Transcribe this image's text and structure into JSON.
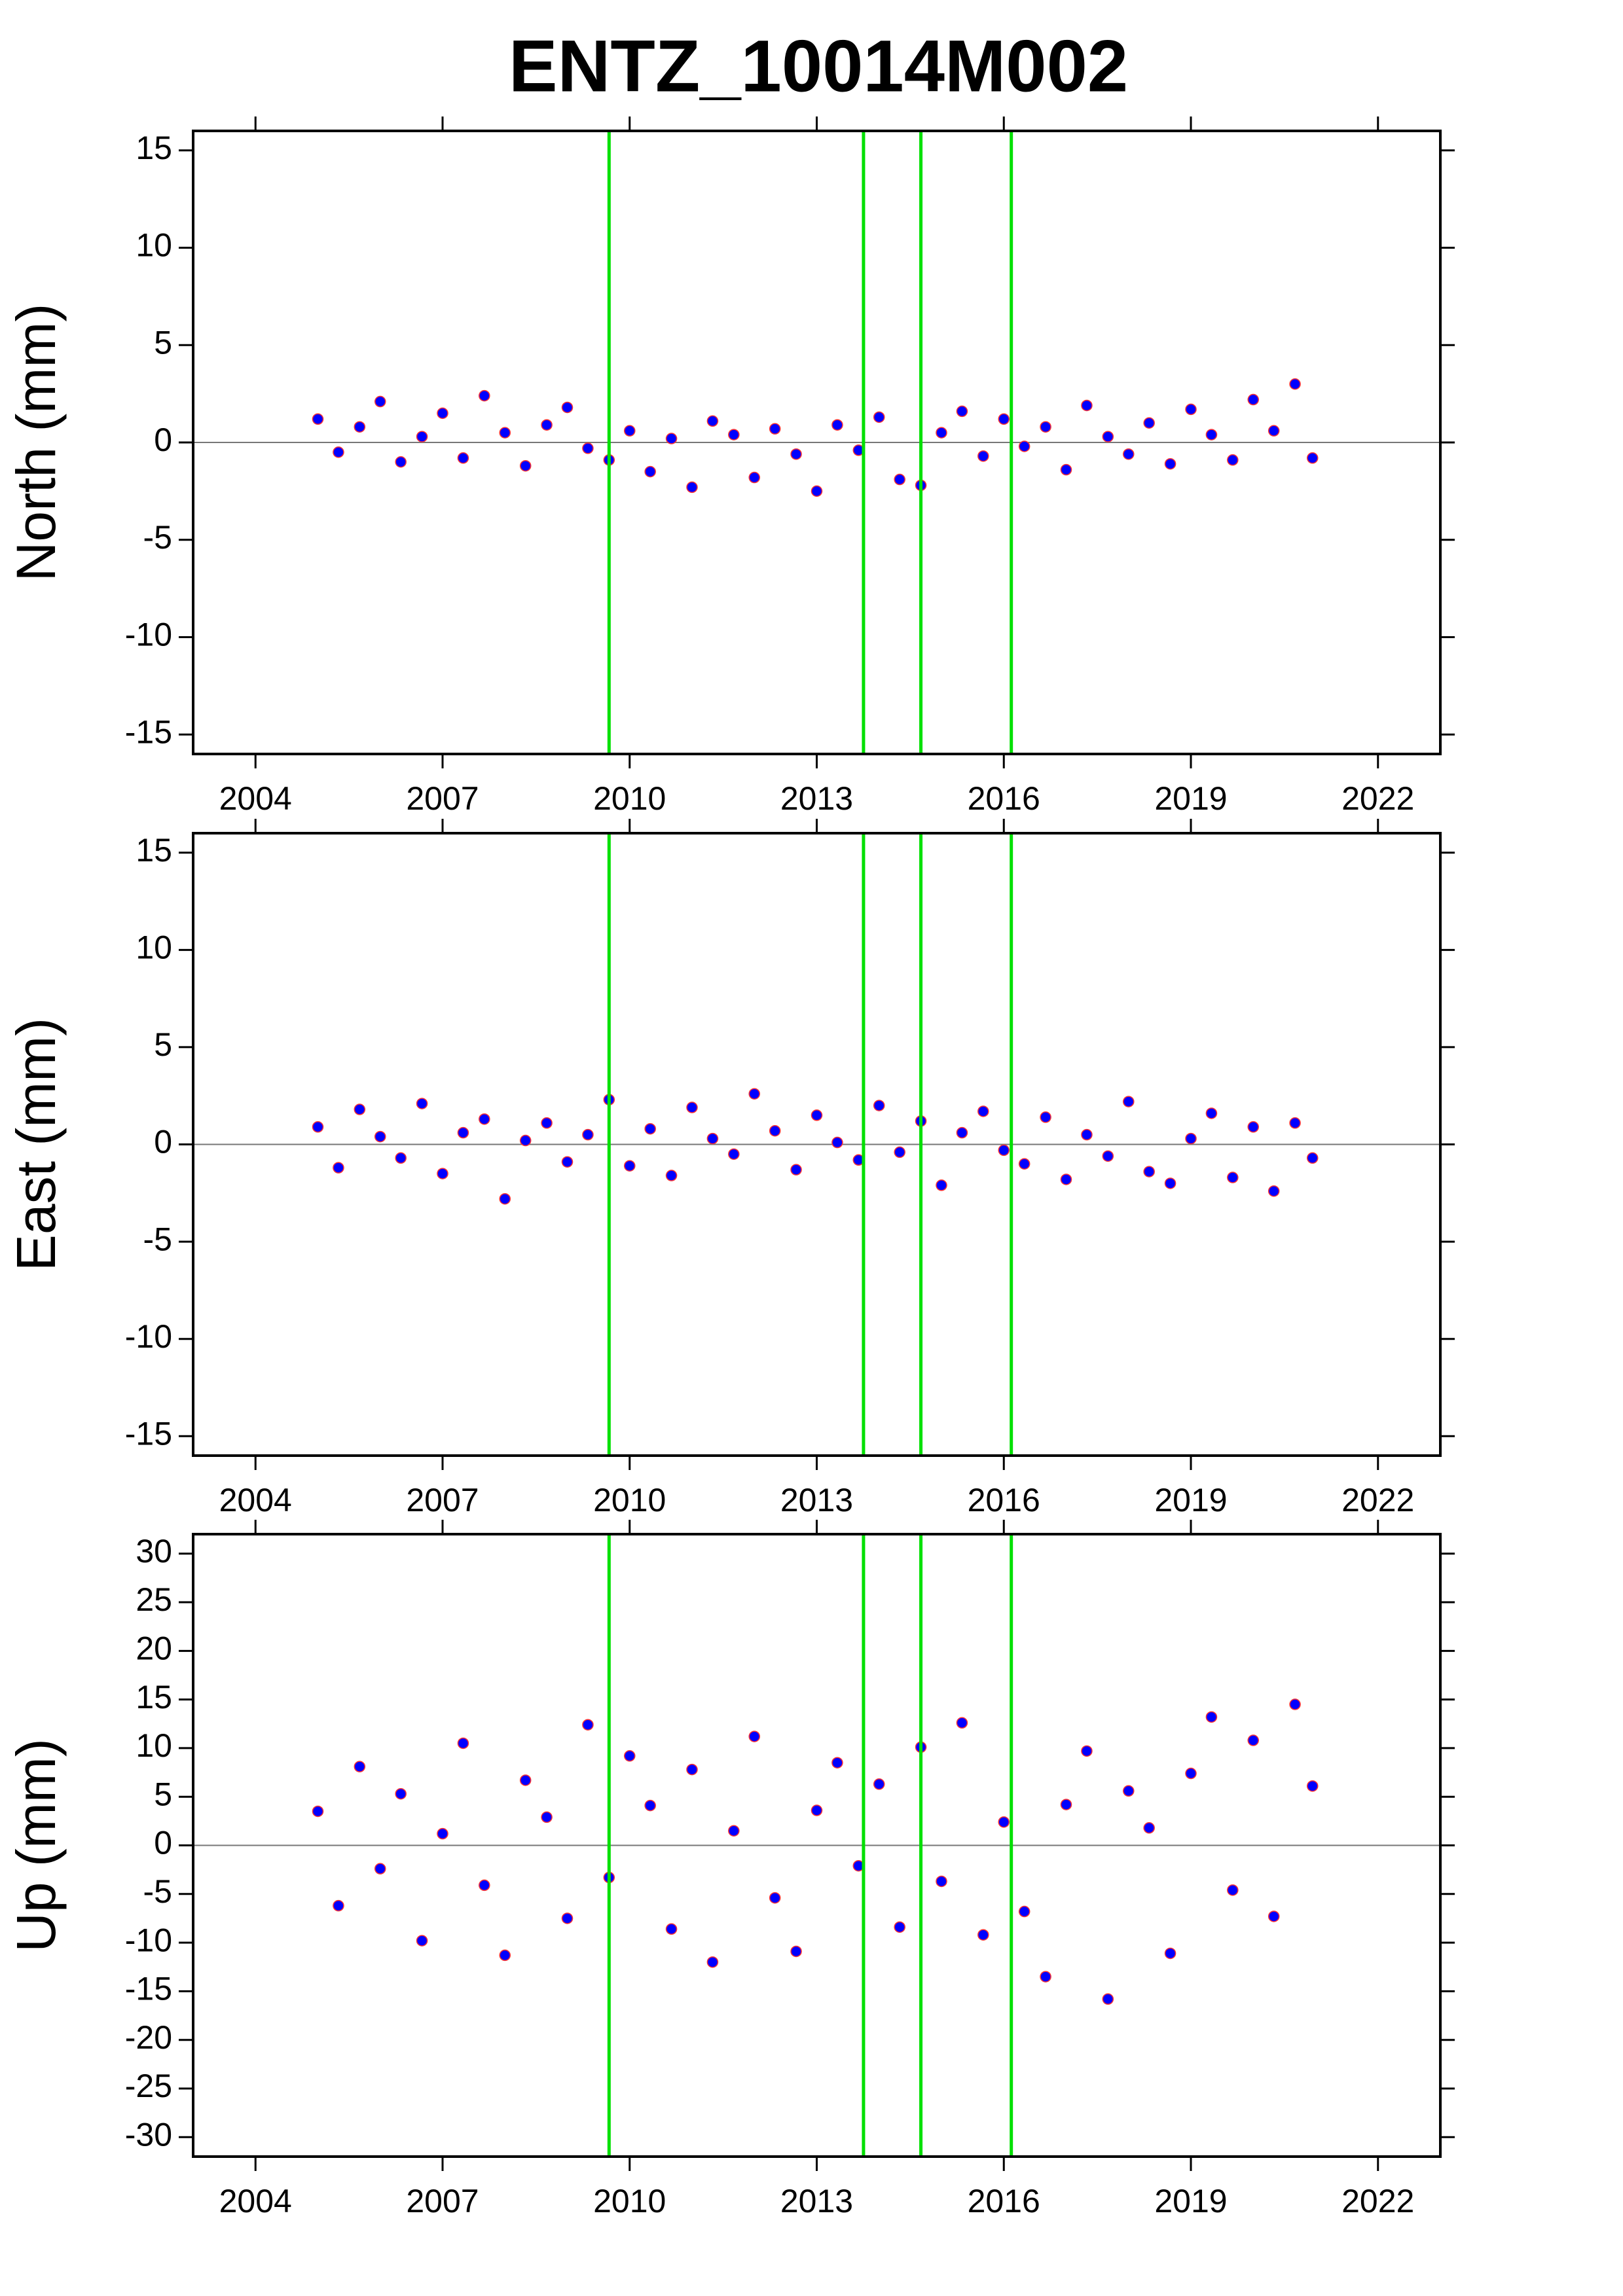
{
  "title": "ENTZ_10014M002",
  "chart_data": [
    {
      "type": "scatter",
      "y_label": "North (mm)",
      "color": "#0000ff",
      "xlim": [
        2003,
        2023
      ],
      "xticks": [
        2004,
        2007,
        2010,
        2013,
        2016,
        2019,
        2022
      ],
      "ylim": [
        -16,
        16
      ],
      "yticks": [
        -15,
        -10,
        -5,
        0,
        5,
        10,
        15
      ],
      "event_color": "#00e000",
      "events": [
        2009.67,
        2013.75,
        2014.67,
        2016.12
      ],
      "x": [
        2005.0,
        2005.33,
        2005.67,
        2006.0,
        2006.33,
        2006.67,
        2007.0,
        2007.33,
        2007.67,
        2008.0,
        2008.33,
        2008.67,
        2009.0,
        2009.33,
        2009.67,
        2010.0,
        2010.33,
        2010.67,
        2011.0,
        2011.33,
        2011.67,
        2012.0,
        2012.33,
        2012.67,
        2013.0,
        2013.33,
        2013.67,
        2014.0,
        2014.33,
        2014.67,
        2015.0,
        2015.33,
        2015.67,
        2016.0,
        2016.33,
        2016.67,
        2017.0,
        2017.33,
        2017.67,
        2018.0,
        2018.33,
        2018.67,
        2019.0,
        2019.33,
        2019.67,
        2020.0,
        2020.33,
        2020.67,
        2020.95
      ],
      "values": [
        1.2,
        -0.5,
        0.8,
        2.1,
        -1.0,
        0.3,
        1.5,
        -0.8,
        2.4,
        0.5,
        -1.2,
        0.9,
        1.8,
        -0.3,
        -0.9,
        0.6,
        -1.5,
        0.2,
        -2.3,
        1.1,
        0.4,
        -1.8,
        0.7,
        -0.6,
        -2.5,
        0.9,
        -0.4,
        1.3,
        -1.9,
        -2.2,
        0.5,
        1.6,
        -0.7,
        1.2,
        -0.2,
        0.8,
        -1.4,
        1.9,
        0.3,
        -0.6,
        1.0,
        -1.1,
        1.7,
        0.4,
        -0.9,
        2.2,
        0.6,
        3.0,
        -0.8
      ]
    },
    {
      "type": "scatter",
      "y_label": "East (mm)",
      "color": "#0000ff",
      "xlim": [
        2003,
        2023
      ],
      "xticks": [
        2004,
        2007,
        2010,
        2013,
        2016,
        2019,
        2022
      ],
      "ylim": [
        -16,
        16
      ],
      "yticks": [
        -15,
        -10,
        -5,
        0,
        5,
        10,
        15
      ],
      "event_color": "#00e000",
      "events": [
        2009.67,
        2013.75,
        2014.67,
        2016.12
      ],
      "x": [
        2005.0,
        2005.33,
        2005.67,
        2006.0,
        2006.33,
        2006.67,
        2007.0,
        2007.33,
        2007.67,
        2008.0,
        2008.33,
        2008.67,
        2009.0,
        2009.33,
        2009.67,
        2010.0,
        2010.33,
        2010.67,
        2011.0,
        2011.33,
        2011.67,
        2012.0,
        2012.33,
        2012.67,
        2013.0,
        2013.33,
        2013.67,
        2014.0,
        2014.33,
        2014.67,
        2015.0,
        2015.33,
        2015.67,
        2016.0,
        2016.33,
        2016.67,
        2017.0,
        2017.33,
        2017.67,
        2018.0,
        2018.33,
        2018.67,
        2019.0,
        2019.33,
        2019.67,
        2020.0,
        2020.33,
        2020.67,
        2020.95
      ],
      "values": [
        0.9,
        -1.2,
        1.8,
        0.4,
        -0.7,
        2.1,
        -1.5,
        0.6,
        1.3,
        -2.8,
        0.2,
        1.1,
        -0.9,
        0.5,
        2.3,
        -1.1,
        0.8,
        -1.6,
        1.9,
        0.3,
        -0.5,
        2.6,
        0.7,
        -1.3,
        1.5,
        0.1,
        -0.8,
        2.0,
        -0.4,
        1.2,
        -2.1,
        0.6,
        1.7,
        -0.3,
        -1.0,
        1.4,
        -1.8,
        0.5,
        -0.6,
        2.2,
        -1.4,
        -2.0,
        0.3,
        1.6,
        -1.7,
        0.9,
        -2.4,
        1.1,
        -0.7
      ]
    },
    {
      "type": "scatter",
      "y_label": "Up (mm)",
      "color": "#0000ff",
      "xlim": [
        2003,
        2023
      ],
      "xticks": [
        2004,
        2007,
        2010,
        2013,
        2016,
        2019,
        2022
      ],
      "ylim": [
        -32,
        32
      ],
      "yticks": [
        -30,
        -25,
        -20,
        -15,
        -10,
        -5,
        0,
        5,
        10,
        15,
        20,
        25,
        30
      ],
      "event_color": "#00e000",
      "events": [
        2009.67,
        2013.75,
        2014.67,
        2016.12
      ],
      "x": [
        2005.0,
        2005.33,
        2005.67,
        2006.0,
        2006.33,
        2006.67,
        2007.0,
        2007.33,
        2007.67,
        2008.0,
        2008.33,
        2008.67,
        2009.0,
        2009.33,
        2009.67,
        2010.0,
        2010.33,
        2010.67,
        2011.0,
        2011.33,
        2011.67,
        2012.0,
        2012.33,
        2012.67,
        2013.0,
        2013.33,
        2013.67,
        2014.0,
        2014.33,
        2014.67,
        2015.0,
        2015.33,
        2015.67,
        2016.0,
        2016.33,
        2016.67,
        2017.0,
        2017.33,
        2017.67,
        2018.0,
        2018.33,
        2018.67,
        2019.0,
        2019.33,
        2019.67,
        2020.0,
        2020.33,
        2020.67,
        2020.95
      ],
      "values": [
        3.5,
        -6.2,
        8.1,
        -2.4,
        5.3,
        -9.8,
        1.2,
        10.5,
        -4.1,
        -11.3,
        6.7,
        2.9,
        -7.5,
        12.4,
        -3.3,
        9.2,
        4.1,
        -8.6,
        7.8,
        -12.0,
        1.5,
        11.2,
        -5.4,
        -10.9,
        3.6,
        8.5,
        -2.1,
        6.3,
        -8.4,
        10.1,
        -3.7,
        12.6,
        -9.2,
        2.4,
        -6.8,
        -13.5,
        4.2,
        9.7,
        -15.8,
        5.6,
        1.8,
        -11.1,
        7.4,
        13.2,
        -4.6,
        10.8,
        -7.3,
        14.5,
        6.1
      ]
    }
  ]
}
